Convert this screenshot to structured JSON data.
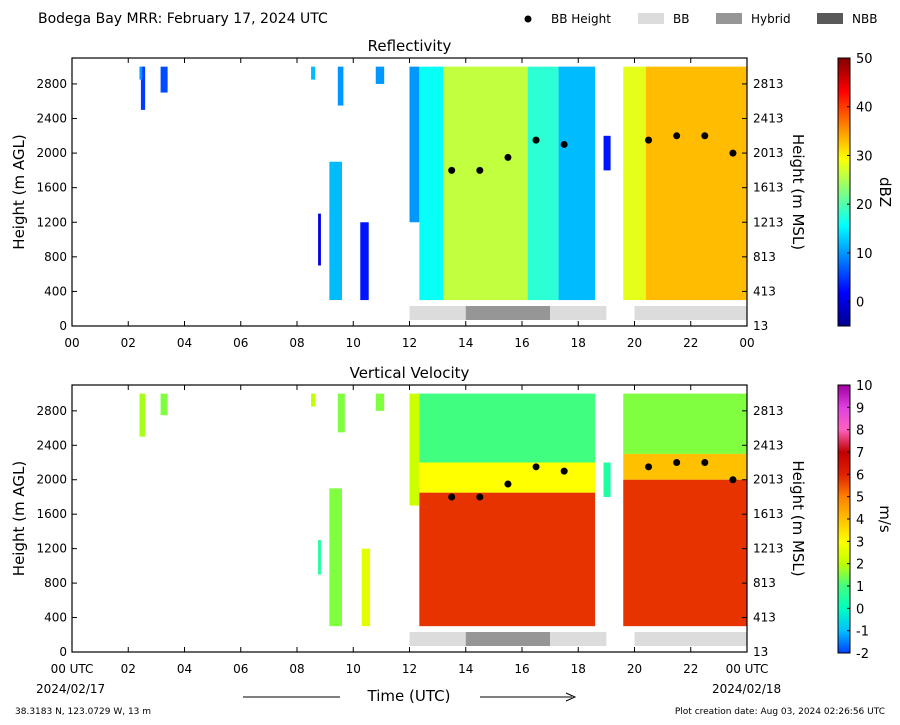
{
  "header": {
    "title": "Bodega Bay MRR:  February 17, 2024 UTC",
    "legend": [
      {
        "label": "BB Height",
        "kind": "dot",
        "color": "#000000"
      },
      {
        "label": "BB",
        "kind": "swatch",
        "color": "#dcdcdc"
      },
      {
        "label": "Hybrid",
        "kind": "swatch",
        "color": "#969696"
      },
      {
        "label": "NBB",
        "kind": "swatch",
        "color": "#595959"
      }
    ]
  },
  "footer": {
    "location": "38.3183 N, 123.0729 W, 13 m",
    "creation": "Plot creation date: Aug 03, 2024 02:26:56 UTC",
    "xlabel": "Time (UTC)",
    "start_date": "2024/02/17",
    "end_date": "2024/02/18"
  },
  "chart_data": [
    {
      "type": "heatmap",
      "title": "Reflectivity",
      "ylabel": "Height (m AGL)",
      "ylabel_right": "Height (m MSL)",
      "x_ticks": [
        "00",
        "02",
        "04",
        "06",
        "08",
        "10",
        "12",
        "14",
        "16",
        "18",
        "20",
        "22",
        "00"
      ],
      "xlim": [
        0,
        24
      ],
      "ylim": [
        0,
        3100
      ],
      "y_ticks": [
        0,
        400,
        800,
        1200,
        1600,
        2000,
        2400,
        2800
      ],
      "y_ticks_right": [
        13,
        413,
        813,
        1213,
        1613,
        2013,
        2413,
        2813
      ],
      "colorbar": {
        "label": "dBZ",
        "min": -5,
        "max": 50,
        "ticks": [
          0,
          10,
          20,
          30,
          40,
          50
        ],
        "colors": [
          "#00008f",
          "#0000ff",
          "#0080ff",
          "#00ffff",
          "#80ff80",
          "#ffff00",
          "#ff8000",
          "#ff0000",
          "#800000"
        ]
      },
      "echo_segments": [
        {
          "start": 2.45,
          "end": 2.6,
          "bottom": 2500,
          "top": 3000,
          "value": 5
        },
        {
          "start": 2.4,
          "end": 2.5,
          "bottom": 2850,
          "top": 3000,
          "value": 10
        },
        {
          "start": 3.15,
          "end": 3.4,
          "bottom": 2700,
          "top": 3000,
          "value": 6
        },
        {
          "start": 8.5,
          "end": 8.65,
          "bottom": 2850,
          "top": 3000,
          "value": 12
        },
        {
          "start": 8.75,
          "end": 8.85,
          "bottom": 700,
          "top": 1300,
          "value": 0
        },
        {
          "start": 9.15,
          "end": 9.6,
          "bottom": 300,
          "top": 1900,
          "value": 12
        },
        {
          "start": 9.45,
          "end": 9.65,
          "bottom": 2550,
          "top": 3000,
          "value": 10
        },
        {
          "start": 10.25,
          "end": 10.55,
          "bottom": 300,
          "top": 1200,
          "value": 3
        },
        {
          "start": 10.8,
          "end": 11.1,
          "bottom": 2800,
          "top": 3000,
          "value": 10
        },
        {
          "start": 12.0,
          "end": 12.35,
          "bottom": 1200,
          "top": 3000,
          "value": 10
        },
        {
          "start": 12.35,
          "end": 13.2,
          "bottom": 300,
          "top": 3000,
          "value": 16
        },
        {
          "start": 13.2,
          "end": 16.2,
          "bottom": 300,
          "top": 3000,
          "value": 26
        },
        {
          "start": 16.2,
          "end": 17.3,
          "bottom": 300,
          "top": 3000,
          "value": 18
        },
        {
          "start": 17.3,
          "end": 18.6,
          "bottom": 300,
          "top": 3000,
          "value": 12
        },
        {
          "start": 18.9,
          "end": 19.15,
          "bottom": 1800,
          "top": 2200,
          "value": 3
        },
        {
          "start": 19.6,
          "end": 20.4,
          "bottom": 300,
          "top": 3000,
          "value": 28
        },
        {
          "start": 20.4,
          "end": 24.0,
          "bottom": 300,
          "top": 3000,
          "value": 33
        }
      ],
      "bb_height": {
        "x": [
          13.5,
          14.5,
          15.5,
          16.5,
          17.5,
          20.5,
          21.5,
          22.5,
          23.5
        ],
        "y": [
          1800,
          1800,
          1950,
          2150,
          2100,
          2150,
          2200,
          2200,
          2000
        ]
      },
      "bb_classification": [
        {
          "start": 12.0,
          "end": 14.0,
          "class": "BB"
        },
        {
          "start": 14.0,
          "end": 17.0,
          "class": "Hybrid"
        },
        {
          "start": 17.0,
          "end": 19.0,
          "class": "BB"
        },
        {
          "start": 20.0,
          "end": 24.0,
          "class": "BB"
        }
      ]
    },
    {
      "type": "heatmap",
      "title": "Vertical Velocity",
      "ylabel": "Height (m AGL)",
      "ylabel_right": "Height (m MSL)",
      "x_ticks": [
        "00 UTC",
        "02",
        "04",
        "06",
        "08",
        "10",
        "12",
        "14",
        "16",
        "18",
        "20",
        "22",
        "00 UTC"
      ],
      "xlim": [
        0,
        24
      ],
      "ylim": [
        0,
        3100
      ],
      "y_ticks": [
        0,
        400,
        800,
        1200,
        1600,
        2000,
        2400,
        2800
      ],
      "y_ticks_right": [
        13,
        413,
        813,
        1213,
        1613,
        2013,
        2413,
        2813
      ],
      "colorbar": {
        "label": "m/s",
        "min": -2,
        "max": 10,
        "ticks": [
          -2,
          -1,
          0,
          1,
          2,
          3,
          4,
          5,
          6,
          7,
          8,
          9,
          10
        ],
        "colors": [
          "#0040ff",
          "#00c0ff",
          "#00ffc0",
          "#40ff80",
          "#c0ff00",
          "#ffff00",
          "#ffc000",
          "#ff8000",
          "#e02000",
          "#c00000",
          "#ff60c0",
          "#e040e0",
          "#a000a0"
        ]
      },
      "echo_segments": [
        {
          "start": 2.4,
          "end": 2.6,
          "bottom": 2500,
          "top": 3000,
          "value": 1.8
        },
        {
          "start": 3.15,
          "end": 3.4,
          "bottom": 2750,
          "top": 3000,
          "value": 1.5
        },
        {
          "start": 8.5,
          "end": 8.65,
          "bottom": 2850,
          "top": 3000,
          "value": 2
        },
        {
          "start": 8.75,
          "end": 8.85,
          "bottom": 900,
          "top": 1300,
          "value": 0.5
        },
        {
          "start": 9.15,
          "end": 9.6,
          "bottom": 300,
          "top": 1900,
          "value": 1.5
        },
        {
          "start": 9.45,
          "end": 9.7,
          "bottom": 2550,
          "top": 3000,
          "value": 1.5
        },
        {
          "start": 10.3,
          "end": 10.6,
          "bottom": 300,
          "top": 1200,
          "value": 2.5
        },
        {
          "start": 10.8,
          "end": 11.1,
          "bottom": 2800,
          "top": 3000,
          "value": 1.5
        },
        {
          "start": 12.0,
          "end": 12.35,
          "bottom": 1700,
          "top": 3000,
          "value": 2.2
        },
        {
          "start": 12.35,
          "end": 18.6,
          "bottom": 2200,
          "top": 3000,
          "value": 1.0
        },
        {
          "start": 12.35,
          "end": 18.6,
          "bottom": 1850,
          "top": 2200,
          "value": 3.0
        },
        {
          "start": 12.35,
          "end": 18.6,
          "bottom": 300,
          "top": 1850,
          "value": 5.8
        },
        {
          "start": 18.9,
          "end": 19.15,
          "bottom": 1800,
          "top": 2200,
          "value": 0.5
        },
        {
          "start": 19.6,
          "end": 24.0,
          "bottom": 2300,
          "top": 3000,
          "value": 1.5
        },
        {
          "start": 19.6,
          "end": 24.0,
          "bottom": 2000,
          "top": 2300,
          "value": 4
        },
        {
          "start": 19.6,
          "end": 24.0,
          "bottom": 300,
          "top": 2000,
          "value": 5.8
        }
      ],
      "bb_height": {
        "x": [
          13.5,
          14.5,
          15.5,
          16.5,
          17.5,
          20.5,
          21.5,
          22.5,
          23.5
        ],
        "y": [
          1800,
          1800,
          1950,
          2150,
          2100,
          2150,
          2200,
          2200,
          2000
        ]
      },
      "bb_classification": [
        {
          "start": 12.0,
          "end": 14.0,
          "class": "BB"
        },
        {
          "start": 14.0,
          "end": 17.0,
          "class": "Hybrid"
        },
        {
          "start": 17.0,
          "end": 19.0,
          "class": "BB"
        },
        {
          "start": 20.0,
          "end": 24.0,
          "class": "BB"
        }
      ]
    }
  ]
}
